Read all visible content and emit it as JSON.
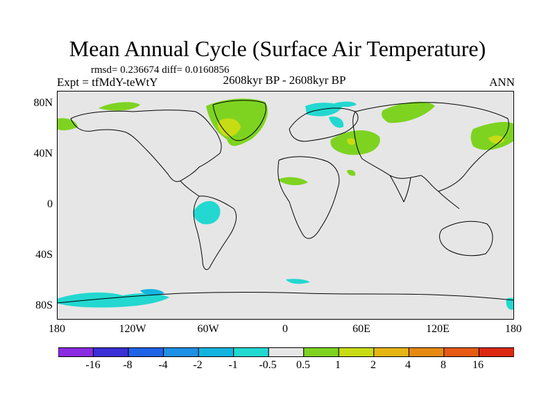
{
  "title": "Mean Annual Cycle (Surface Air Temperature)",
  "stats": "rmsd= 0.236674  diff= 0.0160856",
  "experiment": "Expt = tfMdY-teWtY",
  "period": "2608kyr BP - 2608kyr BP",
  "season": "ANN",
  "map": {
    "lat_ticks": [
      "80N",
      "40N",
      "0",
      "40S",
      "80S"
    ],
    "lon_ticks": [
      "180",
      "120W",
      "60W",
      "0",
      "60E",
      "120E",
      "180"
    ],
    "lat_range": [
      -90,
      90
    ],
    "lon_range": [
      -180,
      180
    ],
    "background_color": "#e6e6e6"
  },
  "colorbar": {
    "labels": [
      "-16",
      "-8",
      "-4",
      "-2",
      "-1",
      "-0.5",
      "0.5",
      "1",
      "2",
      "4",
      "8",
      "16"
    ],
    "colors": [
      "#8a2be2",
      "#3b2fd6",
      "#1f63e6",
      "#1e90e6",
      "#14b4e0",
      "#22d8d0",
      "#e6e6e6",
      "#7ed321",
      "#c8dc14",
      "#e6b414",
      "#e68a14",
      "#e65a14",
      "#dc2810"
    ]
  }
}
